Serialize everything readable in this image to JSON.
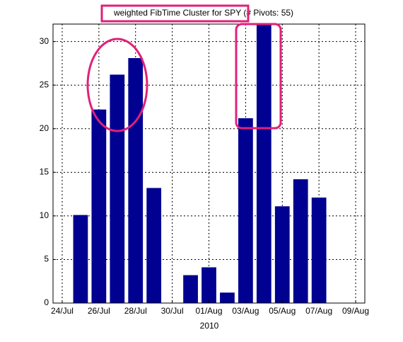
{
  "chart_data": {
    "type": "bar",
    "title": "weighted FibTime Cluster for SPY (# Pivots: 55)",
    "xlabel": "2010",
    "x": [
      "2010-07-25",
      "2010-07-26",
      "2010-07-27",
      "2010-07-28",
      "2010-07-29",
      "2010-07-31",
      "2010-08-01",
      "2010-08-02",
      "2010-08-03",
      "2010-08-04",
      "2010-08-05",
      "2010-08-06",
      "2010-08-07"
    ],
    "values": [
      10.1,
      22.2,
      26.2,
      28.1,
      13.2,
      3.2,
      4.1,
      1.2,
      21.2,
      32,
      11.1,
      14.2,
      12.1
    ],
    "color": "#000091",
    "xlim": [
      "2010-07-23T12:00",
      "2010-08-09T12:00"
    ],
    "xticks": [
      {
        "value": "2010-07-24",
        "label": "24/Jul"
      },
      {
        "value": "2010-07-26",
        "label": "26/Jul"
      },
      {
        "value": "2010-07-28",
        "label": "28/Jul"
      },
      {
        "value": "2010-07-30",
        "label": "30/Jul"
      },
      {
        "value": "2010-08-01",
        "label": "01/Aug"
      },
      {
        "value": "2010-08-03",
        "label": "03/Aug"
      },
      {
        "value": "2010-08-05",
        "label": "05/Aug"
      },
      {
        "value": "2010-08-07",
        "label": "07/Aug"
      },
      {
        "value": "2010-08-09",
        "label": "09/Aug"
      }
    ],
    "ylim": [
      0,
      32
    ],
    "yticks": [
      0,
      5,
      10,
      15,
      20,
      25,
      30
    ],
    "grid": true
  }
}
